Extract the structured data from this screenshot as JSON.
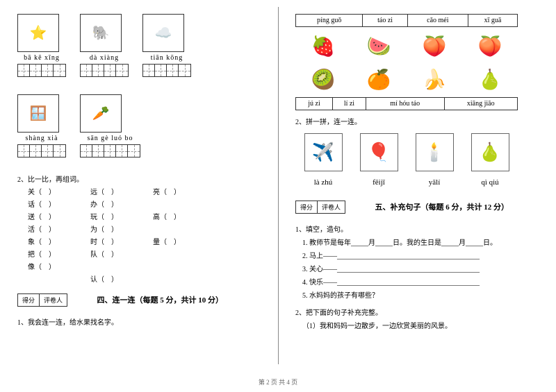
{
  "left": {
    "row1": [
      {
        "emoji": "⭐",
        "pinyin": "bā kē xīng",
        "cells": 4
      },
      {
        "emoji": "🐘",
        "pinyin": "dà xiàng",
        "cells": 4
      },
      {
        "emoji": "☁️",
        "pinyin": "tiān kōng",
        "cells": 4
      }
    ],
    "row2": [
      {
        "emoji": "🪟",
        "pinyin": "shàng xià",
        "cells": 4
      },
      {
        "emoji": "🥕",
        "pinyin": "sān gè luó bo",
        "cells": 5
      }
    ],
    "q2_title": "2、比一比，再组词。",
    "word_rows": [
      [
        "关（　）",
        "远（　）",
        "亮（　）",
        "话（　）",
        "办（　）"
      ],
      [
        "送（　）",
        "玩（　）",
        "高（　）",
        "活（　）",
        "为（　）"
      ],
      [
        "象（　）",
        "时（　）",
        "量（　）",
        "把（　）",
        "队（　）"
      ],
      [
        "像（　）",
        "",
        "",
        "",
        "认（　）"
      ]
    ],
    "score_labels": [
      "得分",
      "评卷人"
    ],
    "section4": "四、连一连（每题 5 分，共计 10 分）",
    "q1": "1、我会连一连，给水果找名字。"
  },
  "right": {
    "pinyin_top": [
      "píng guǒ",
      "táo zi",
      "cǎo méi",
      "xī guā"
    ],
    "fruits_top": [
      "🍓",
      "🍉",
      "🍑",
      "🍑"
    ],
    "fruits_mid": [
      "🥝",
      "🍊",
      "🍌",
      "🍐"
    ],
    "pinyin_bottom": [
      "jú zi",
      "lí zi",
      "mí hóu táo",
      "xiāng jiāo"
    ],
    "q2_title": "2、拼一拼，连一连。",
    "match_imgs": [
      "✈️",
      "🎈",
      "🕯️",
      "🍐"
    ],
    "match_labels": [
      "là zhú",
      "fēijī",
      "yālí",
      "qì qiú"
    ],
    "score_labels": [
      "得分",
      "评卷人"
    ],
    "section5": "五、补充句子（每题 6 分，共计 12 分）",
    "fill_title": "1、填空，造句。",
    "fills": [
      "1. 教师节是每年_____月_____日。我的生日是_____月_____日。",
      "2. 马上——_________________________________________",
      "3. 关心——_________________________________________",
      "4. 快乐——_________________________________________",
      "5. 水妈妈的孩子有哪些？"
    ],
    "q2b": "2、把下面的句子补充完整。",
    "q2b_line": "（1）我和妈妈一边散步，一边欣赏美丽的风景。"
  },
  "footer": "第 2 页 共 4 页"
}
